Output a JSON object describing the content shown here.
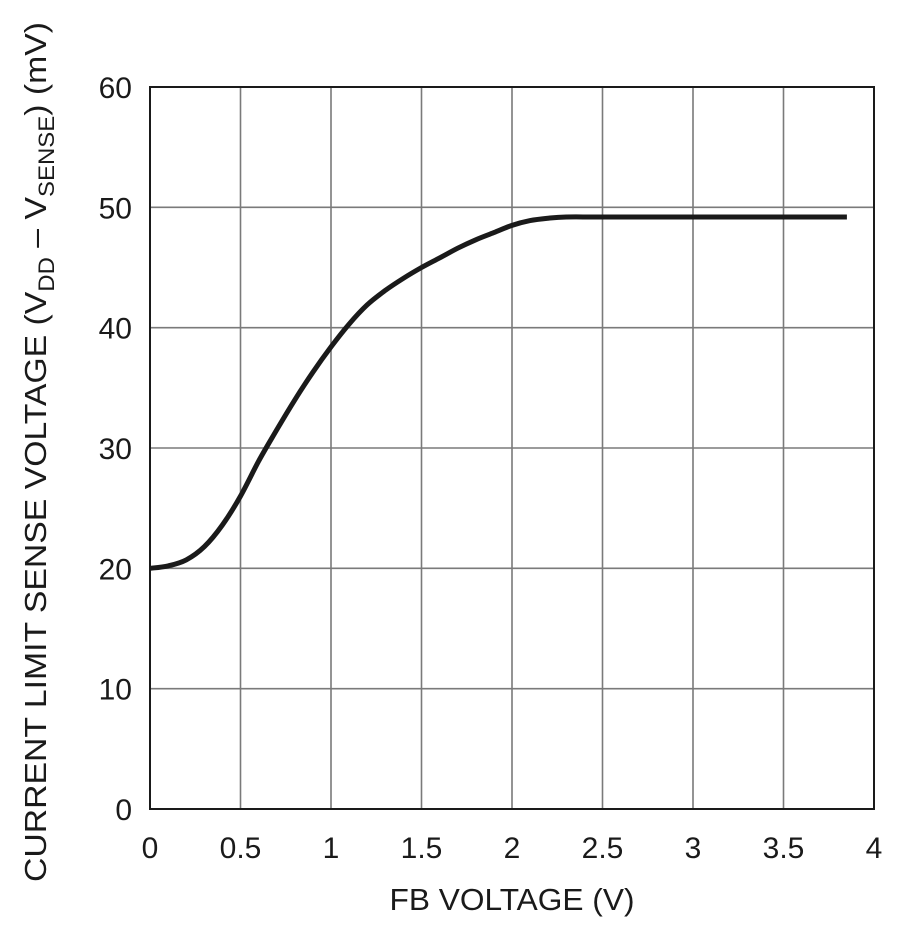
{
  "chart_data": {
    "type": "line",
    "title": "",
    "xlabel": "FB VOLTAGE (V)",
    "ylabel": {
      "prefix": "CURRENT LIMIT SENSE VOLTAGE (V",
      "sub1": "DD",
      "middle": " – V",
      "sub2": "SENSE",
      "suffix": ") (mV)"
    },
    "xlim": [
      0,
      4
    ],
    "ylim": [
      0,
      60
    ],
    "x_ticks": [
      0,
      0.5,
      1,
      1.5,
      2,
      2.5,
      3,
      3.5,
      4
    ],
    "y_ticks": [
      0,
      10,
      20,
      30,
      40,
      50,
      60
    ],
    "x_tick_labels": [
      "0",
      "0.5",
      "1",
      "1.5",
      "2",
      "2.5",
      "3",
      "3.5",
      "4"
    ],
    "y_tick_labels": [
      "0",
      "10",
      "20",
      "30",
      "40",
      "50",
      "60"
    ],
    "grid": true,
    "legend": "none",
    "series": [
      {
        "color": "#1a1a1a",
        "x": [
          0,
          0.1,
          0.2,
          0.3,
          0.4,
          0.5,
          0.6,
          0.7,
          0.8,
          0.9,
          1.0,
          1.1,
          1.2,
          1.3,
          1.4,
          1.5,
          1.6,
          1.7,
          1.8,
          1.9,
          2.0,
          2.1,
          2.2,
          2.3,
          2.5,
          3.0,
          3.5,
          3.85
        ],
        "y": [
          20.0,
          20.2,
          20.7,
          21.8,
          23.6,
          26.0,
          28.9,
          31.5,
          34.0,
          36.3,
          38.4,
          40.3,
          41.9,
          43.1,
          44.1,
          45.0,
          45.8,
          46.6,
          47.3,
          47.9,
          48.5,
          48.9,
          49.1,
          49.2,
          49.2,
          49.2,
          49.2,
          49.2
        ]
      }
    ]
  }
}
